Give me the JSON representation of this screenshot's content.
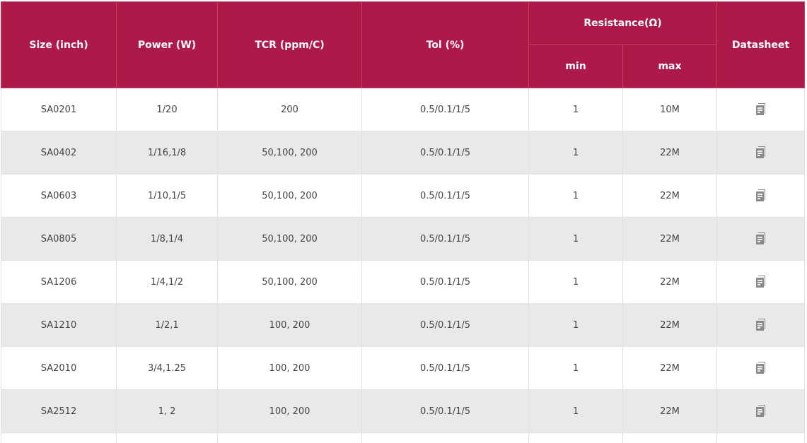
{
  "header": {
    "size": "Size (inch)",
    "power": "Power (W)",
    "tcr": "TCR (ppm/C)",
    "tol": "Tol (%)",
    "resistance": "Resistance(Ω)",
    "min": "min",
    "max": "max",
    "datasheet": "Datasheet"
  },
  "colors": {
    "header_bg": "#ad1a4a",
    "row_alt": "#e9e9e9",
    "icon": "#8a8a8a"
  },
  "datasheet_icon": "document-icon",
  "rows": [
    {
      "size": "SA0201",
      "power": "1/20",
      "tcr": "200",
      "tol": "0.5/0.1/1/5",
      "min": "1",
      "max": "10M"
    },
    {
      "size": "SA0402",
      "power": "1/16,1/8",
      "tcr": "50,100, 200",
      "tol": "0.5/0.1/1/5",
      "min": "1",
      "max": "22M"
    },
    {
      "size": "SA0603",
      "power": "1/10,1/5",
      "tcr": "50,100, 200",
      "tol": "0.5/0.1/1/5",
      "min": "1",
      "max": "22M"
    },
    {
      "size": "SA0805",
      "power": "1/8,1/4",
      "tcr": "50,100, 200",
      "tol": "0.5/0.1/1/5",
      "min": "1",
      "max": "22M"
    },
    {
      "size": "SA1206",
      "power": "1/4,1/2",
      "tcr": "50,100, 200",
      "tol": "0.5/0.1/1/5",
      "min": "1",
      "max": "22M"
    },
    {
      "size": "SA1210",
      "power": "1/2,1",
      "tcr": "100, 200",
      "tol": "0.5/0.1/1/5",
      "min": "1",
      "max": "22M"
    },
    {
      "size": "SA2010",
      "power": "3/4,1.25",
      "tcr": "100, 200",
      "tol": "0.5/0.1/1/5",
      "min": "1",
      "max": "22M"
    },
    {
      "size": "SA2512",
      "power": "1, 2",
      "tcr": "100, 200",
      "tol": "0.5/0.1/1/5",
      "min": "1",
      "max": "22M"
    }
  ]
}
